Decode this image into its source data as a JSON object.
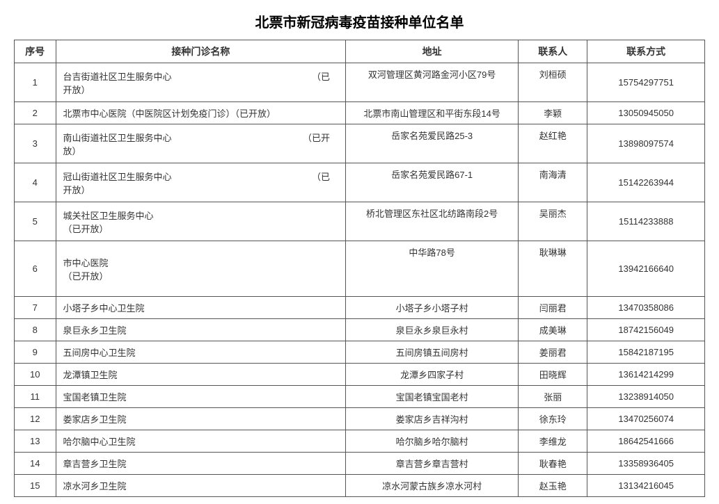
{
  "title": "北票市新冠病毒疫苗接种单位名单",
  "columns": [
    "序号",
    "接种门诊名称",
    "地址",
    "联系人",
    "联系方式"
  ],
  "rows": [
    {
      "seq": "1",
      "name": "台吉街道社区卫生服务中心　　　　　　　　　　　　　　　　（已开放）",
      "addr": "双河管理区黄河路金河小区79号",
      "contact": "刘桓硕",
      "phone": "15754297751",
      "lines": "two"
    },
    {
      "seq": "2",
      "name": "北票市中心医院（中医院区计划免疫门诊）（已开放）",
      "addr": "北票市南山管理区和平街东段14号",
      "contact": "李颖",
      "phone": "13050945050",
      "lines": "one"
    },
    {
      "seq": "3",
      "name": "南山街道社区卫生服务中心　　　　　　　　　　　　　　　（已开放）",
      "addr": "岳家名苑爱民路25-3",
      "contact": "赵红艳",
      "phone": "13898097574",
      "lines": "two"
    },
    {
      "seq": "4",
      "name": "冠山街道社区卫生服务中心　　　　　　　　　　　　　　　　（已开放）",
      "addr": "岳家名苑爱民路67-1",
      "contact": "南海清",
      "phone": "15142263944",
      "lines": "two"
    },
    {
      "seq": "5",
      "name": "城关社区卫生服务中心　　　　　　　　　　　　　　　　　　　　　　　　　　　　　　（已开放）",
      "addr": "桥北管理区东社区北纺路南段2号",
      "contact": "吴丽杰",
      "phone": "15114233888",
      "lines": "two"
    },
    {
      "seq": "6",
      "name": "市中心医院　　　　　　　　　　　　　　　　　　　　　　　　　　　　　　　　　　　　　　　　　　　　　　　　　　　（已开放）",
      "addr": "中华路78号",
      "contact": "耿琳琳",
      "phone": "13942166640",
      "lines": "three"
    },
    {
      "seq": "7",
      "name": "小塔子乡中心卫生院",
      "addr": "小塔子乡小塔子村",
      "contact": "闫丽君",
      "phone": "13470358086",
      "lines": "one"
    },
    {
      "seq": "8",
      "name": "泉巨永乡卫生院",
      "addr": "泉巨永乡泉巨永村",
      "contact": "成美琳",
      "phone": "18742156049",
      "lines": "one"
    },
    {
      "seq": "9",
      "name": "五间房中心卫生院",
      "addr": "五间房镇五间房村",
      "contact": "姜丽君",
      "phone": "15842187195",
      "lines": "one"
    },
    {
      "seq": "10",
      "name": "龙潭镇卫生院",
      "addr": "龙潭乡四家子村",
      "contact": "田晓辉",
      "phone": "13614214299",
      "lines": "one"
    },
    {
      "seq": "11",
      "name": "宝国老镇卫生院",
      "addr": "宝国老镇宝国老村",
      "contact": "张丽",
      "phone": "13238914050",
      "lines": "one"
    },
    {
      "seq": "12",
      "name": "娄家店乡卫生院",
      "addr": "娄家店乡吉祥沟村",
      "contact": "徐东玲",
      "phone": "13470256074",
      "lines": "one"
    },
    {
      "seq": "13",
      "name": "哈尔脑中心卫生院",
      "addr": "哈尔脑乡哈尔脑村",
      "contact": "李维龙",
      "phone": "18642541666",
      "lines": "one"
    },
    {
      "seq": "14",
      "name": "章吉营乡卫生院",
      "addr": "章吉营乡章吉营村",
      "contact": "耿春艳",
      "phone": "13358936405",
      "lines": "one"
    },
    {
      "seq": "15",
      "name": "凉水河乡卫生院",
      "addr": "凉水河蒙古族乡凉水河村",
      "contact": "赵玉艳",
      "phone": "13134216045",
      "lines": "one"
    }
  ],
  "styling": {
    "background_color": "#ffffff",
    "border_color": "#555555",
    "text_color": "#333333",
    "title_color": "#000000",
    "title_fontsize": 20,
    "body_fontsize": 13,
    "header_fontsize": 14,
    "col_widths_pct": [
      6,
      42,
      25,
      10,
      17
    ]
  }
}
